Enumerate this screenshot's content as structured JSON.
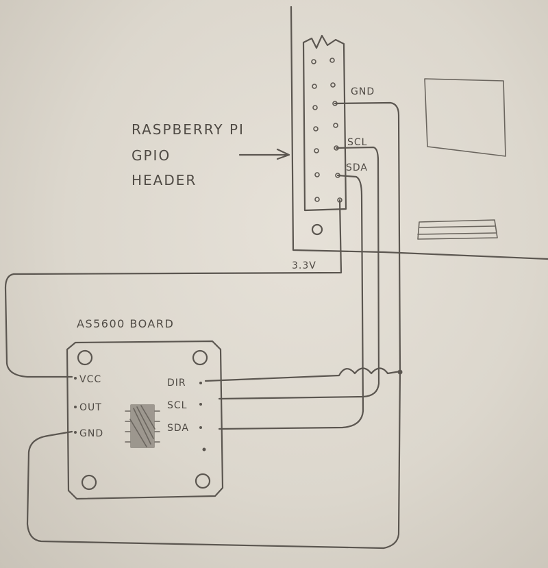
{
  "header_label": {
    "line1": "RASPBERRY PI",
    "line2": "GPIO",
    "line3": "HEADER"
  },
  "header_pins": {
    "gnd": "GND",
    "scl": "SCL",
    "sda": "SDA",
    "v33": "3.3V"
  },
  "board": {
    "title": "AS5600 BOARD",
    "left_pins": [
      "VCC",
      "OUT",
      "GND"
    ],
    "right_pins": [
      "DIR",
      "SCL",
      "SDA"
    ]
  },
  "colors": {
    "paper": "#e3ded5",
    "pencil": "#5b5650"
  }
}
